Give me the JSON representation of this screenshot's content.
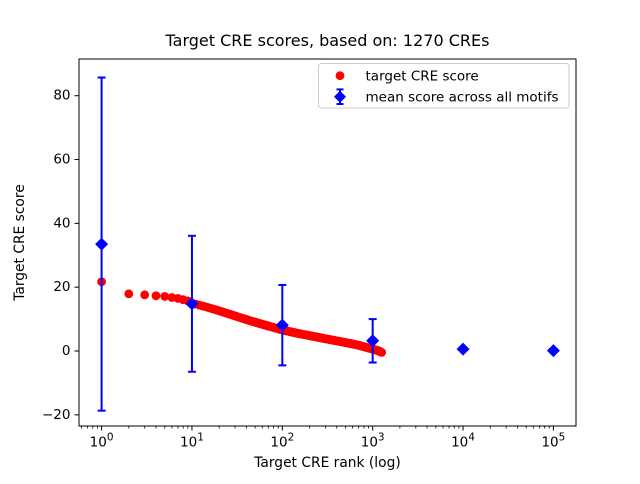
{
  "chart_data": {
    "type": "scatter",
    "title": "Target CRE scores, based on: 1270 CREs",
    "xlabel": "Target CRE rank (log)",
    "ylabel": "Target CRE score",
    "x_scale": "log",
    "xlim_log10": [
      -0.25,
      5.25
    ],
    "ylim": [
      -23.5,
      91.5
    ],
    "x_tick_exponents": [
      0,
      1,
      2,
      3,
      4,
      5
    ],
    "x_tick_base": "10",
    "y_ticks": [
      -20,
      0,
      20,
      40,
      60,
      80
    ],
    "grid": false,
    "legend_position": "upper right",
    "colors": {
      "target": "#ff0000",
      "mean": "#0000ff",
      "legend_border": "#cccccc",
      "axis": "#000000"
    },
    "legend": [
      {
        "label": "target CRE score",
        "marker": "circle",
        "color": "#ff0000"
      },
      {
        "label": "mean score across all motifs",
        "marker": "diamond-errorbar",
        "color": "#0000ff"
      }
    ],
    "series": [
      {
        "name": "target CRE score",
        "render": "dots",
        "marker": "circle",
        "color": "#ff0000",
        "n_points": 1270,
        "anchors": [
          [
            1,
            21.7
          ],
          [
            2,
            17.9
          ],
          [
            3,
            17.6
          ],
          [
            4,
            17.3
          ],
          [
            5,
            17.1
          ],
          [
            7,
            16.5
          ],
          [
            9,
            15.7
          ],
          [
            10,
            15.0
          ],
          [
            14,
            13.9
          ],
          [
            20,
            12.6
          ],
          [
            30,
            11.0
          ],
          [
            45,
            9.4
          ],
          [
            65,
            8.1
          ],
          [
            100,
            6.6
          ],
          [
            150,
            5.5
          ],
          [
            220,
            4.6
          ],
          [
            320,
            3.7
          ],
          [
            470,
            2.8
          ],
          [
            680,
            1.9
          ],
          [
            1000,
            0.6
          ],
          [
            1150,
            0.1
          ],
          [
            1270,
            -0.5
          ]
        ]
      },
      {
        "name": "mean score across all motifs",
        "render": "errorbar",
        "marker": "diamond",
        "color": "#0000ff",
        "points": [
          {
            "x": 1,
            "y": 33.5,
            "err": 52.2
          },
          {
            "x": 10,
            "y": 14.8,
            "err": 21.3
          },
          {
            "x": 100,
            "y": 8.1,
            "err": 12.6
          },
          {
            "x": 1000,
            "y": 3.2,
            "err": 6.8
          },
          {
            "x": 10000,
            "y": 0.6,
            "err": 0
          },
          {
            "x": 100000,
            "y": 0.1,
            "err": 0
          }
        ]
      }
    ]
  }
}
